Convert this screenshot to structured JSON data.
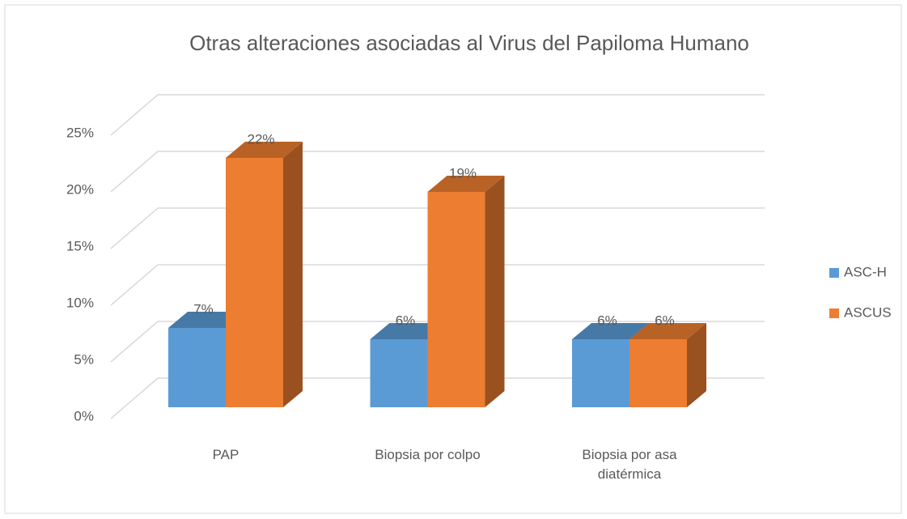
{
  "chart_data": {
    "type": "bar3d",
    "title": "Otras alteraciones asociadas al Virus del Papiloma Humano",
    "categories": [
      "PAP",
      "Biopsia por colpo",
      "Biopsia por asa diatérmica"
    ],
    "series": [
      {
        "name": "ASC-H",
        "color": "#5b9bd5",
        "values": [
          7,
          6,
          6
        ],
        "value_labels": [
          "7%",
          "6%",
          "6%"
        ]
      },
      {
        "name": "ASCUS",
        "color": "#ed7d31",
        "values": [
          22,
          19,
          6
        ],
        "value_labels": [
          "22%",
          "19%",
          "6%"
        ]
      }
    ],
    "ylim": [
      0,
      25
    ],
    "yticks": [
      {
        "value": 0,
        "label": "0%"
      },
      {
        "value": 5,
        "label": "5%"
      },
      {
        "value": 10,
        "label": "10%"
      },
      {
        "value": 15,
        "label": "15%"
      },
      {
        "value": 20,
        "label": "20%"
      },
      {
        "value": 25,
        "label": "25%"
      }
    ],
    "grid": true,
    "legend": "right"
  }
}
